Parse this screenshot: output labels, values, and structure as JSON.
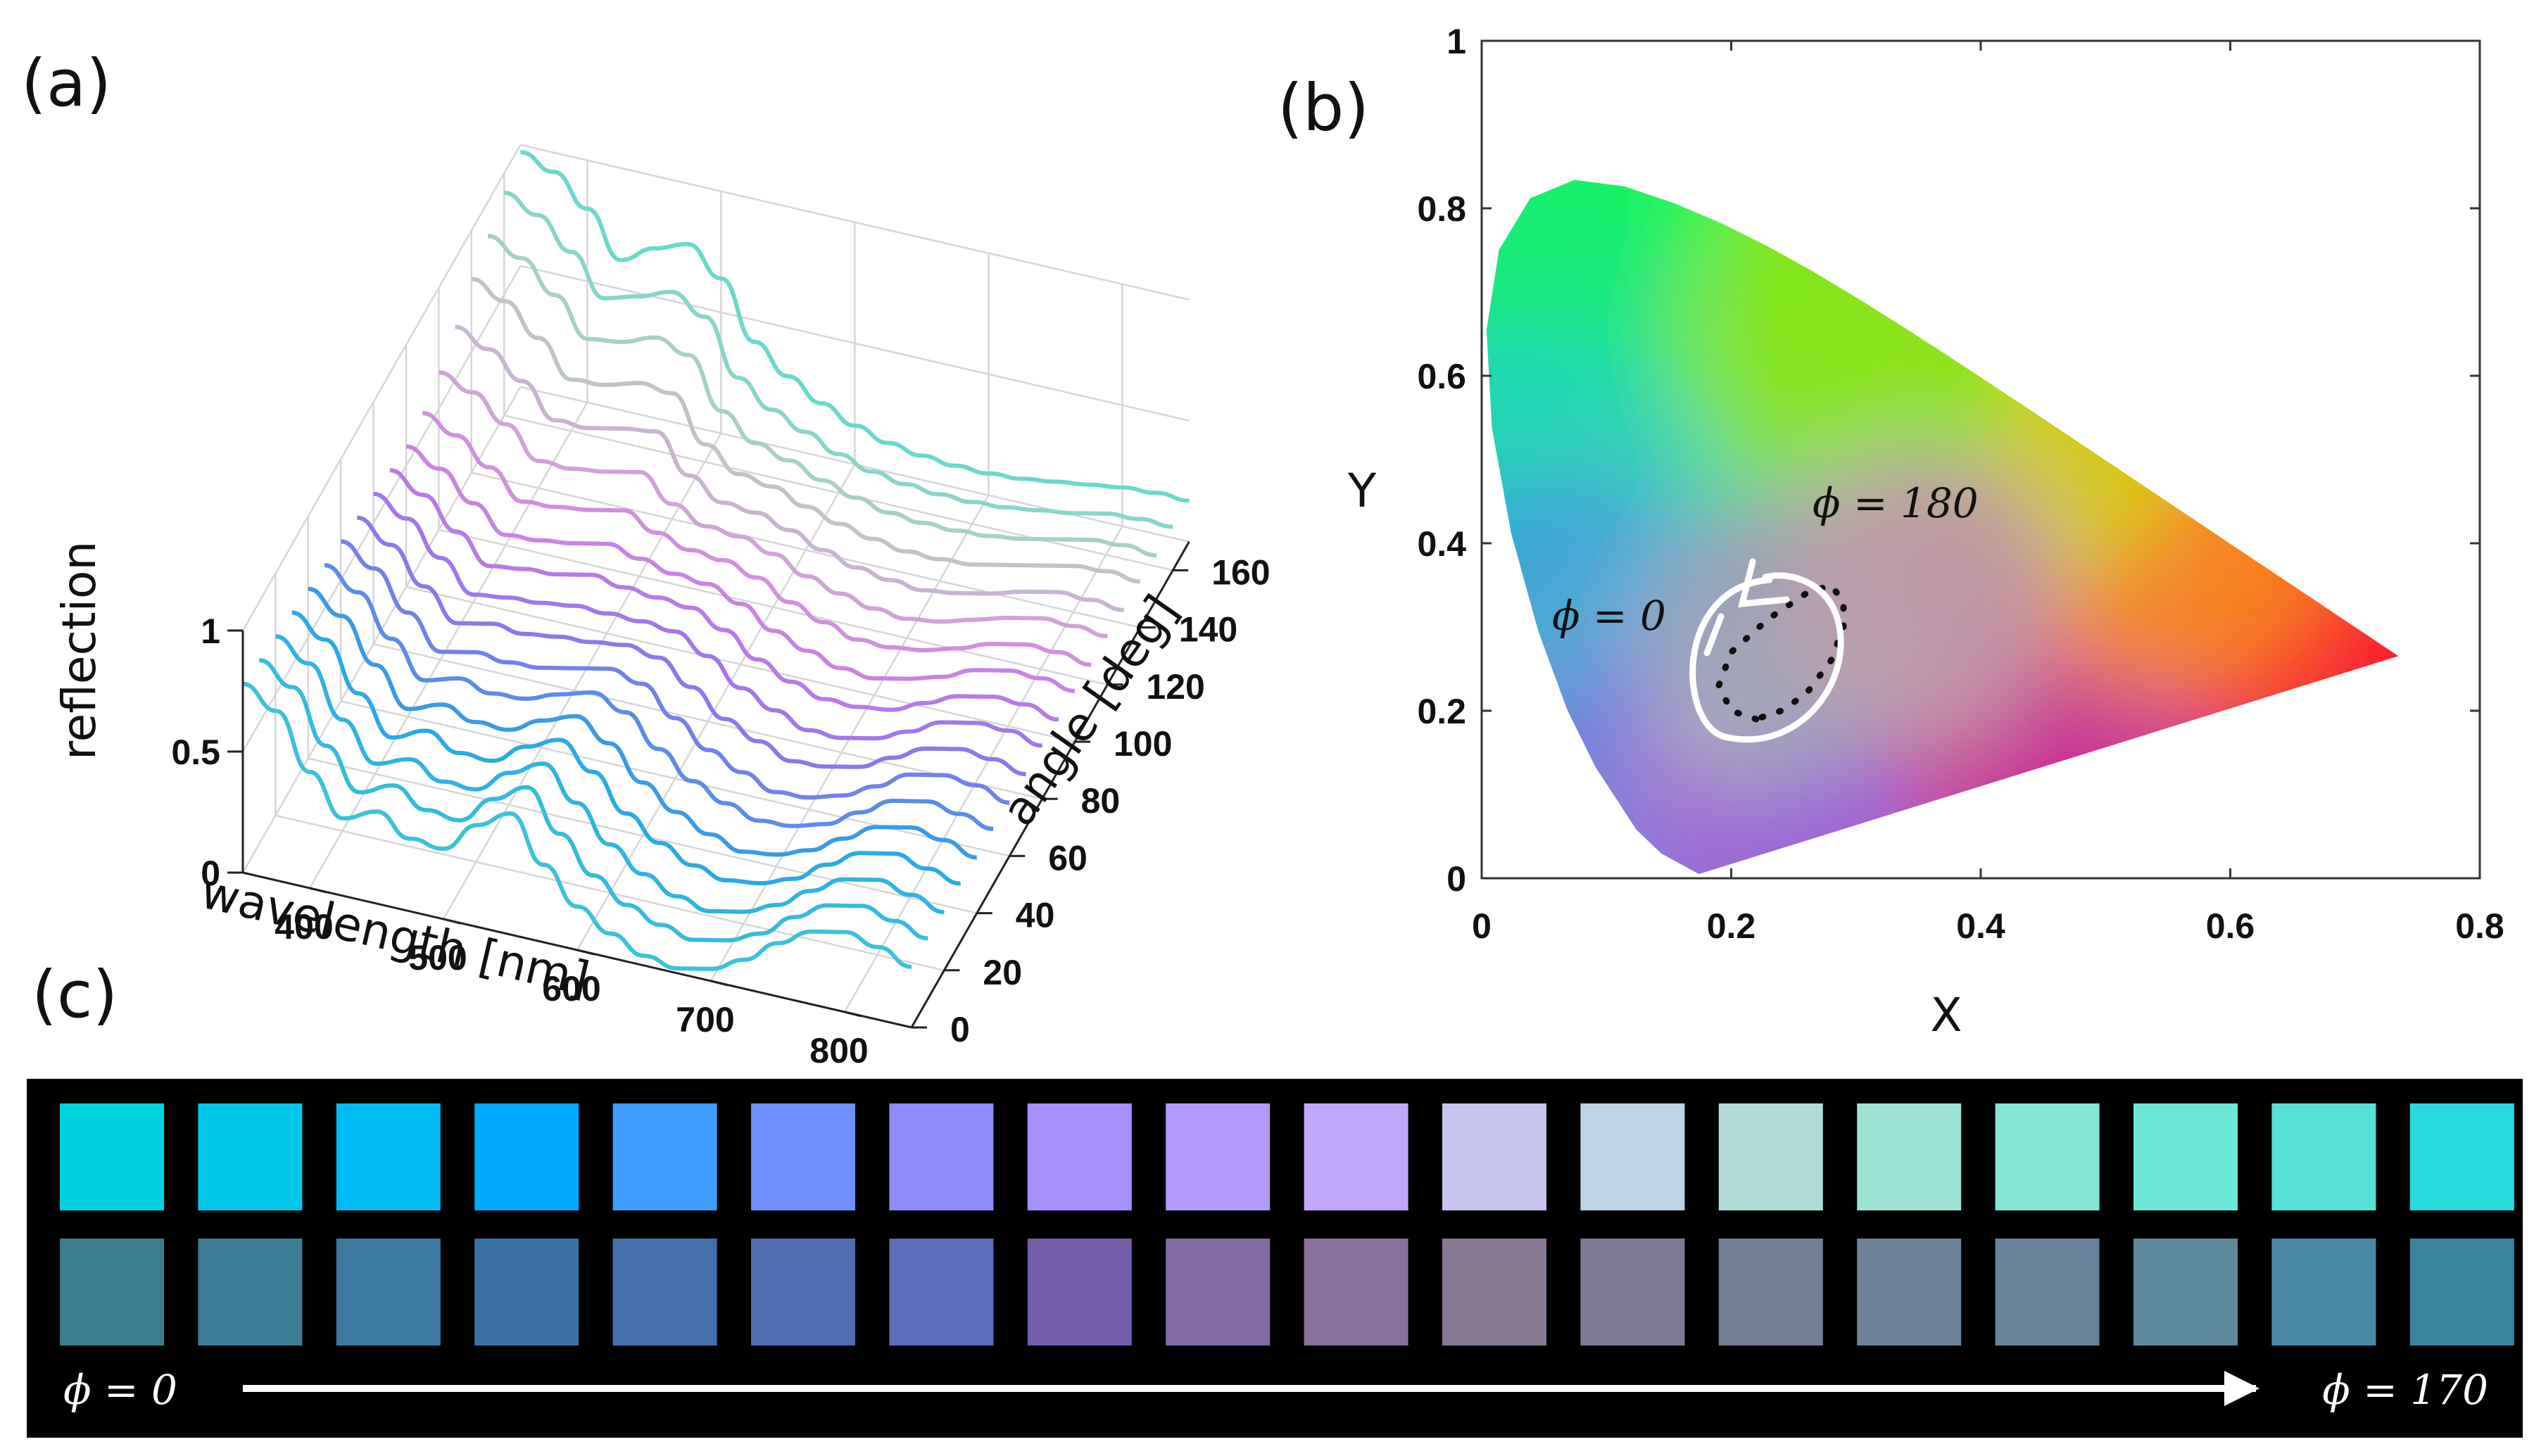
{
  "panel_labels": {
    "a": "(a)",
    "b": "(b)",
    "c": "(c)"
  },
  "chart_data": [
    {
      "id": "a",
      "type": "line",
      "title": "",
      "xlabel": "wavelength [nm]",
      "ylabel": "angle [deg]",
      "zlabel": "reflection",
      "xlim": [
        350,
        850
      ],
      "ylim": [
        0,
        170
      ],
      "zlim": [
        0,
        1
      ],
      "xticks": [
        "400",
        "500",
        "600",
        "700",
        "800"
      ],
      "yticks": [
        "0",
        "20",
        "40",
        "60",
        "80",
        "100",
        "120",
        "140",
        "160"
      ],
      "zticks": [
        "0",
        "0.5",
        "1"
      ],
      "x": [
        350,
        375,
        400,
        425,
        450,
        475,
        500,
        525,
        550,
        575,
        600,
        625,
        650,
        675,
        700,
        725,
        750,
        775,
        800,
        825,
        850
      ],
      "series": [
        {
          "angle": 0,
          "color": "#3bc2d8",
          "values": [
            0.78,
            0.7,
            0.48,
            0.32,
            0.38,
            0.3,
            0.29,
            0.42,
            0.5,
            0.32,
            0.18,
            0.1,
            0.04,
            0.02,
            0.05,
            0.12,
            0.22,
            0.3,
            0.33,
            0.3,
            0.25
          ]
        },
        {
          "angle": 10,
          "color": "#35bcdc",
          "values": [
            0.76,
            0.68,
            0.47,
            0.31,
            0.37,
            0.3,
            0.29,
            0.41,
            0.49,
            0.33,
            0.19,
            0.1,
            0.05,
            0.02,
            0.05,
            0.11,
            0.21,
            0.29,
            0.32,
            0.29,
            0.25
          ]
        },
        {
          "angle": 20,
          "color": "#2fb4e0",
          "values": [
            0.74,
            0.66,
            0.46,
            0.31,
            0.36,
            0.3,
            0.3,
            0.4,
            0.47,
            0.34,
            0.2,
            0.11,
            0.05,
            0.02,
            0.05,
            0.11,
            0.2,
            0.28,
            0.31,
            0.28,
            0.24
          ]
        },
        {
          "angle": 30,
          "color": "#2aaae4",
          "values": [
            0.72,
            0.64,
            0.45,
            0.3,
            0.36,
            0.3,
            0.3,
            0.39,
            0.45,
            0.35,
            0.21,
            0.12,
            0.06,
            0.03,
            0.05,
            0.1,
            0.19,
            0.27,
            0.3,
            0.27,
            0.24
          ]
        },
        {
          "angle": 40,
          "color": "#3a9ae6",
          "values": [
            0.7,
            0.62,
            0.45,
            0.3,
            0.35,
            0.31,
            0.31,
            0.38,
            0.43,
            0.35,
            0.22,
            0.13,
            0.07,
            0.03,
            0.05,
            0.1,
            0.18,
            0.26,
            0.29,
            0.27,
            0.23
          ]
        },
        {
          "angle": 50,
          "color": "#5a8ce8",
          "values": [
            0.68,
            0.6,
            0.44,
            0.3,
            0.34,
            0.31,
            0.32,
            0.37,
            0.41,
            0.36,
            0.24,
            0.14,
            0.08,
            0.04,
            0.05,
            0.09,
            0.17,
            0.25,
            0.28,
            0.26,
            0.23
          ]
        },
        {
          "angle": 60,
          "color": "#7480ea",
          "values": [
            0.66,
            0.58,
            0.43,
            0.3,
            0.33,
            0.32,
            0.33,
            0.36,
            0.39,
            0.36,
            0.25,
            0.15,
            0.09,
            0.04,
            0.05,
            0.09,
            0.16,
            0.24,
            0.27,
            0.26,
            0.22
          ]
        },
        {
          "angle": 70,
          "color": "#8c78ec",
          "values": [
            0.64,
            0.56,
            0.42,
            0.3,
            0.33,
            0.32,
            0.34,
            0.35,
            0.37,
            0.35,
            0.26,
            0.16,
            0.1,
            0.05,
            0.06,
            0.09,
            0.16,
            0.23,
            0.26,
            0.25,
            0.22
          ]
        },
        {
          "angle": 80,
          "color": "#a376ec",
          "values": [
            0.62,
            0.55,
            0.42,
            0.3,
            0.32,
            0.33,
            0.35,
            0.35,
            0.35,
            0.34,
            0.27,
            0.17,
            0.11,
            0.06,
            0.06,
            0.09,
            0.15,
            0.22,
            0.25,
            0.25,
            0.22
          ]
        },
        {
          "angle": 90,
          "color": "#b87ae8",
          "values": [
            0.6,
            0.53,
            0.41,
            0.3,
            0.32,
            0.33,
            0.36,
            0.34,
            0.33,
            0.32,
            0.26,
            0.17,
            0.11,
            0.07,
            0.07,
            0.09,
            0.15,
            0.21,
            0.24,
            0.24,
            0.21
          ]
        },
        {
          "angle": 100,
          "color": "#c884e2",
          "values": [
            0.58,
            0.52,
            0.41,
            0.31,
            0.32,
            0.34,
            0.37,
            0.34,
            0.31,
            0.3,
            0.25,
            0.17,
            0.12,
            0.08,
            0.07,
            0.1,
            0.14,
            0.2,
            0.23,
            0.23,
            0.21
          ]
        },
        {
          "angle": 110,
          "color": "#d090dc",
          "values": [
            0.6,
            0.54,
            0.44,
            0.33,
            0.34,
            0.36,
            0.39,
            0.33,
            0.29,
            0.28,
            0.24,
            0.17,
            0.12,
            0.08,
            0.08,
            0.1,
            0.14,
            0.19,
            0.22,
            0.22,
            0.2
          ]
        },
        {
          "angle": 120,
          "color": "#d0a4d6",
          "values": [
            0.65,
            0.6,
            0.5,
            0.38,
            0.38,
            0.4,
            0.43,
            0.33,
            0.27,
            0.26,
            0.22,
            0.16,
            0.12,
            0.09,
            0.08,
            0.1,
            0.14,
            0.18,
            0.21,
            0.21,
            0.2
          ]
        },
        {
          "angle": 130,
          "color": "#c8b4d0",
          "values": [
            0.72,
            0.66,
            0.56,
            0.43,
            0.43,
            0.46,
            0.48,
            0.33,
            0.25,
            0.24,
            0.2,
            0.15,
            0.11,
            0.09,
            0.08,
            0.1,
            0.13,
            0.17,
            0.2,
            0.2,
            0.19
          ]
        },
        {
          "angle": 140,
          "color": "#bcc4c6",
          "values": [
            0.8,
            0.74,
            0.62,
            0.48,
            0.49,
            0.53,
            0.52,
            0.34,
            0.25,
            0.23,
            0.18,
            0.14,
            0.11,
            0.09,
            0.09,
            0.1,
            0.13,
            0.16,
            0.19,
            0.2,
            0.19
          ]
        },
        {
          "angle": 150,
          "color": "#a6d0c6",
          "values": [
            0.86,
            0.8,
            0.68,
            0.53,
            0.55,
            0.6,
            0.56,
            0.36,
            0.26,
            0.22,
            0.17,
            0.13,
            0.1,
            0.09,
            0.09,
            0.1,
            0.12,
            0.15,
            0.18,
            0.19,
            0.18
          ]
        },
        {
          "angle": 160,
          "color": "#88d6c8",
          "values": [
            0.92,
            0.86,
            0.74,
            0.58,
            0.62,
            0.67,
            0.6,
            0.38,
            0.28,
            0.22,
            0.16,
            0.12,
            0.1,
            0.09,
            0.09,
            0.1,
            0.12,
            0.14,
            0.17,
            0.18,
            0.18
          ]
        },
        {
          "angle": 170,
          "color": "#6ad8cc",
          "values": [
            0.97,
            0.92,
            0.8,
            0.62,
            0.7,
            0.75,
            0.64,
            0.41,
            0.3,
            0.22,
            0.16,
            0.12,
            0.1,
            0.09,
            0.09,
            0.1,
            0.12,
            0.14,
            0.16,
            0.17,
            0.17
          ]
        }
      ]
    },
    {
      "id": "b",
      "type": "scatter",
      "title": "",
      "xlabel": "X",
      "ylabel": "Y",
      "xlim": [
        0,
        0.8
      ],
      "ylim": [
        0,
        1
      ],
      "xticks": [
        "0",
        "0.2",
        "0.4",
        "0.6",
        "0.8"
      ],
      "yticks": [
        "0",
        "0.2",
        "0.4",
        "0.6",
        "0.8",
        "1"
      ],
      "locus": [
        [
          0.1741,
          0.005
        ],
        [
          0.144,
          0.0297
        ],
        [
          0.1241,
          0.0578
        ],
        [
          0.0913,
          0.1327
        ],
        [
          0.0687,
          0.2007
        ],
        [
          0.0454,
          0.295
        ],
        [
          0.0235,
          0.4127
        ],
        [
          0.0082,
          0.5384
        ],
        [
          0.0039,
          0.6548
        ],
        [
          0.0139,
          0.7502
        ],
        [
          0.0389,
          0.812
        ],
        [
          0.0743,
          0.8338
        ],
        [
          0.1142,
          0.8262
        ],
        [
          0.1547,
          0.8059
        ],
        [
          0.1929,
          0.7816
        ],
        [
          0.2296,
          0.7543
        ],
        [
          0.2658,
          0.7243
        ],
        [
          0.3016,
          0.6923
        ],
        [
          0.3373,
          0.6589
        ],
        [
          0.3731,
          0.6245
        ],
        [
          0.4087,
          0.5896
        ],
        [
          0.4441,
          0.5547
        ],
        [
          0.4788,
          0.5202
        ],
        [
          0.5125,
          0.4866
        ],
        [
          0.5448,
          0.4544
        ],
        [
          0.5752,
          0.4242
        ],
        [
          0.6029,
          0.3965
        ],
        [
          0.627,
          0.3725
        ],
        [
          0.6482,
          0.3514
        ],
        [
          0.6658,
          0.334
        ],
        [
          0.6915,
          0.3083
        ],
        [
          0.7079,
          0.292
        ],
        [
          0.7347,
          0.2653
        ]
      ],
      "dotted_path": [
        [
          0.22,
          0.19
        ],
        [
          0.2,
          0.2
        ],
        [
          0.19,
          0.23
        ],
        [
          0.2,
          0.27
        ],
        [
          0.23,
          0.31
        ],
        [
          0.26,
          0.34
        ],
        [
          0.28,
          0.35
        ],
        [
          0.29,
          0.33
        ],
        [
          0.29,
          0.3
        ],
        [
          0.28,
          0.26
        ],
        [
          0.26,
          0.22
        ],
        [
          0.24,
          0.2
        ],
        [
          0.22,
          0.19
        ]
      ],
      "annotations": [
        {
          "text": "𝜙 = 0",
          "x": 0.11,
          "y": 0.3
        },
        {
          "text": "𝜙 = 180",
          "x": 0.33,
          "y": 0.44
        }
      ]
    }
  ],
  "swatches": {
    "top_colors": [
      "#00d2e0",
      "#00c6e8",
      "#00baf4",
      "#00aaff",
      "#409cff",
      "#6e8ffc",
      "#8c8cfa",
      "#a490f8",
      "#b29afa",
      "#c2a8fa",
      "#c6c4ee",
      "#bcd4e6",
      "#b0dcd8",
      "#9de2d2",
      "#84e6d4",
      "#6ce6d6",
      "#56e2d6",
      "#28dade"
    ],
    "bottom_colors": [
      "#3b7e90",
      "#3c7d98",
      "#3c7aa2",
      "#3b72a6",
      "#4470ac",
      "#4f6cb2",
      "#5b6cb8",
      "#735ca8",
      "#826aa4",
      "#8a709c",
      "#877994",
      "#7e7a96",
      "#727d96",
      "#6c829a",
      "#67849c",
      "#5e889e",
      "#4a88a6",
      "#3b84a0"
    ],
    "left_label": "𝜙 = 0",
    "right_label": "𝜙 = 170"
  }
}
